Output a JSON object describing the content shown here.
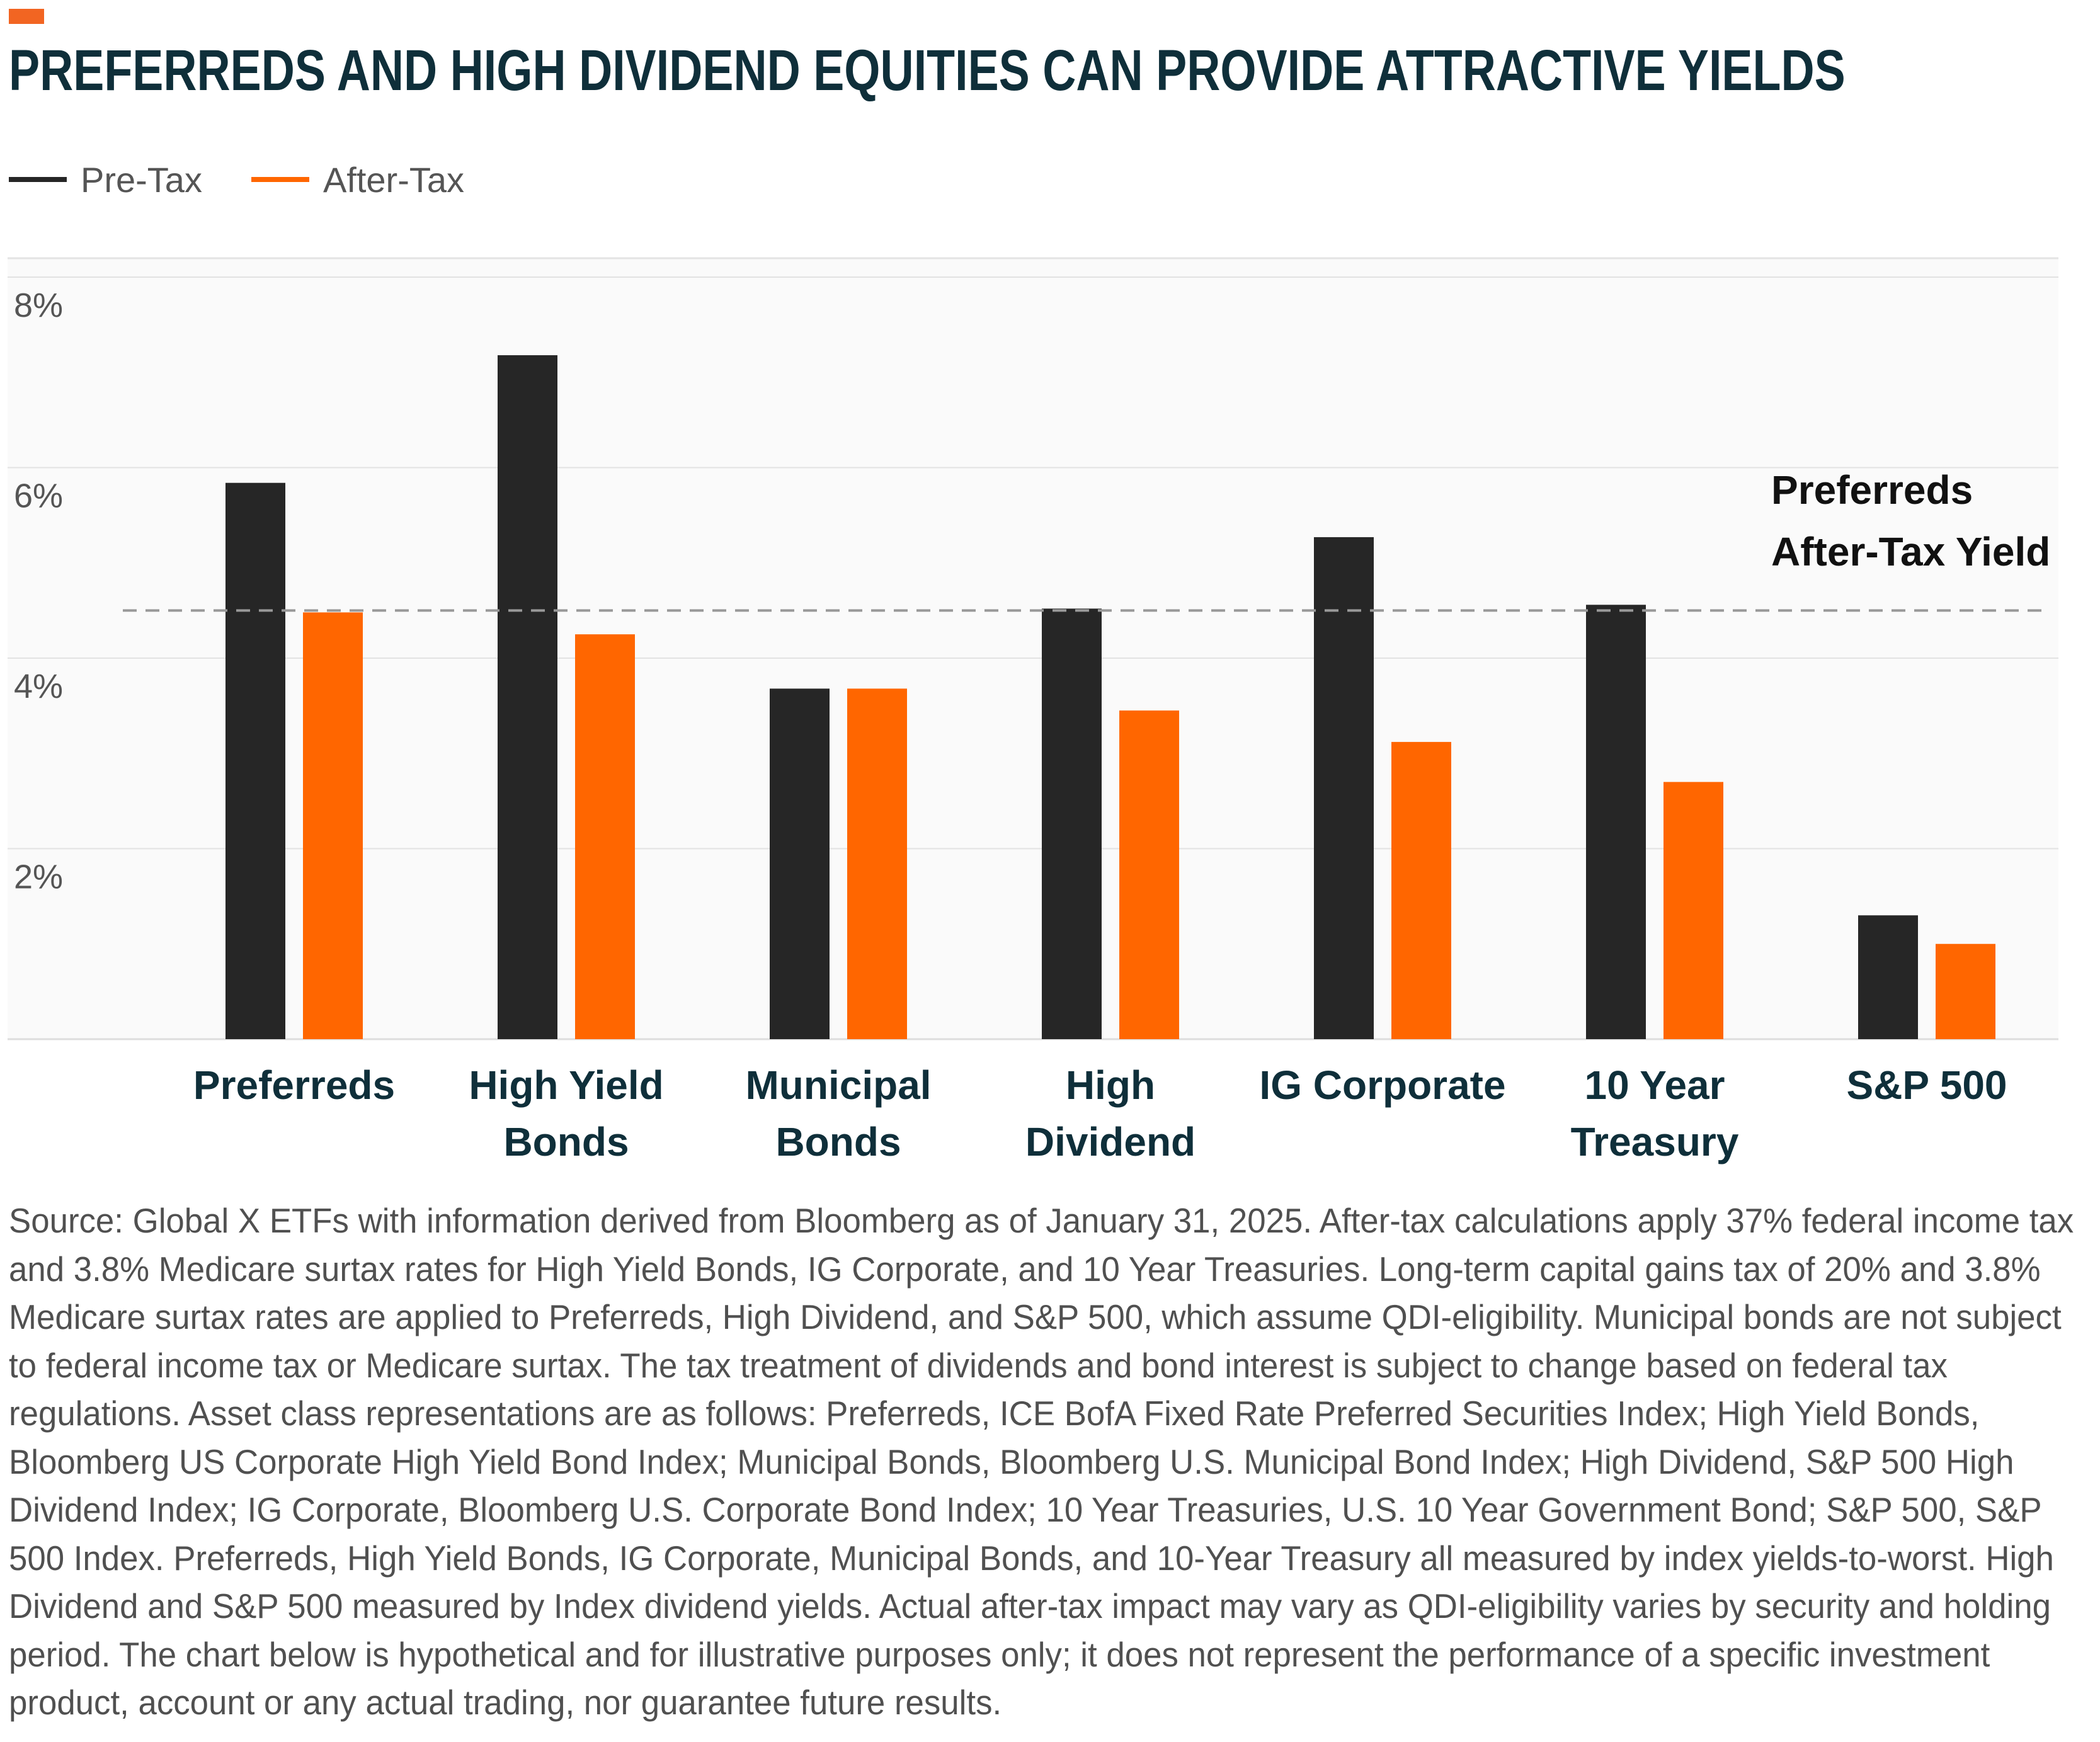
{
  "colors": {
    "accent": "#f26522",
    "pretax": "#262626",
    "aftertax": "#ff6600",
    "title": "#0f2f3a"
  },
  "title": "PREFERREDS AND HIGH DIVIDEND EQUITIES CAN PROVIDE ATTRACTIVE YIELDS",
  "legend": {
    "pretax": "Pre-Tax",
    "aftertax": "After-Tax"
  },
  "chart_data": {
    "type": "bar",
    "categories": [
      [
        "Preferreds"
      ],
      [
        "High Yield",
        "Bonds"
      ],
      [
        "Municipal",
        "Bonds"
      ],
      [
        "High",
        "Dividend"
      ],
      [
        "IG Corporate"
      ],
      [
        "10 Year",
        "Treasury"
      ],
      [
        "S&P 500"
      ]
    ],
    "series": [
      {
        "name": "Pre-Tax",
        "values": [
          5.84,
          7.18,
          3.68,
          4.52,
          5.27,
          4.56,
          1.3
        ]
      },
      {
        "name": "After-Tax",
        "values": [
          4.48,
          4.25,
          3.68,
          3.45,
          3.12,
          2.7,
          1.0
        ]
      }
    ],
    "ylim": [
      0,
      8
    ],
    "yticks": [
      2,
      4,
      6,
      8
    ],
    "ytick_labels": [
      "2%",
      "4%",
      "6%",
      "8%"
    ],
    "reference_line": {
      "value": 4.5,
      "label": [
        "Preferreds",
        "After-Tax Yield"
      ]
    },
    "grid": true,
    "legend_position": "top-left"
  },
  "footnote": "Source: Global X ETFs with information derived from Bloomberg as of January 31, 2025. After-tax calculations apply 37% federal income tax and 3.8% Medicare surtax rates for High Yield Bonds, IG Corporate, and 10 Year Treasuries. Long-term capital gains tax of 20% and 3.8% Medicare surtax rates are applied to Preferreds, High Dividend, and S&P 500, which assume QDI-eligibility. Municipal bonds are not subject to federal income tax or Medicare surtax. The tax treatment of dividends and bond interest is subject to change based on federal tax regulations. Asset class representations are as follows: Preferreds, ICE BofA Fixed Rate Preferred Securities Index; High Yield Bonds, Bloomberg US Corporate High Yield Bond Index; Municipal Bonds, Bloomberg U.S. Municipal Bond Index; High Dividend, S&P 500 High Dividend Index; IG Corporate, Bloomberg U.S. Corporate Bond Index; 10 Year Treasuries, U.S. 10 Year Government Bond; S&P 500, S&P 500 Index. Preferreds, High Yield Bonds, IG Corporate, Municipal Bonds, and 10-Year Treasury all measured by index yields-to-worst. High Dividend and S&P 500 measured by Index dividend yields. Actual after-tax impact may vary as QDI-eligibility varies by security and holding period. The chart below is hypothetical and for illustrative purposes only; it does not represent the performance of a specific investment product, account or any actual trading, nor guarantee future results."
}
